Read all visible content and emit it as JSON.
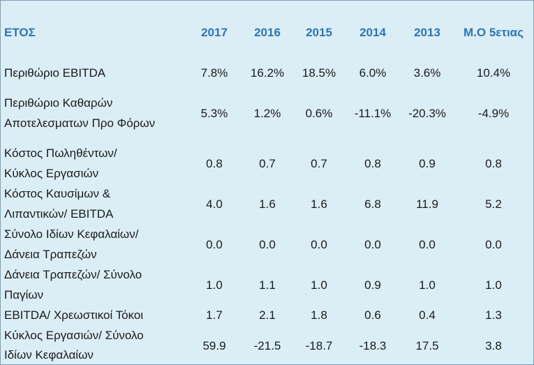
{
  "header": {
    "label": "ΕΤΟΣ",
    "years": [
      "2017",
      "2016",
      "2015",
      "2014",
      "2013",
      "Μ.Ο 5ετιας"
    ]
  },
  "rows": [
    {
      "label_lines": [
        "Περιθώριο EBITDA"
      ],
      "values": [
        "7.8%",
        "16.2%",
        "18.5%",
        "6.0%",
        "3.6%",
        "10.4%"
      ]
    },
    {
      "label_lines": [
        "Περιθώριο Καθαρών",
        "Αποτελεσματων Προ Φόρων"
      ],
      "values": [
        "5.3%",
        "1.2%",
        "0.6%",
        "-11.1%",
        "-20.3%",
        "-4.9%"
      ]
    },
    {
      "label_lines": [
        "Κόστος Πωληθέντων/",
        "Κύκλος Εργασιών"
      ],
      "values": [
        "0.8",
        "0.7",
        "0.7",
        "0.8",
        "0.9",
        "0.8"
      ]
    },
    {
      "label_lines": [
        "Κόστος Καυσίμων &",
        "Λιπαντικών/ EBITDA"
      ],
      "values": [
        "4.0",
        "1.6",
        "1.6",
        "6.8",
        "11.9",
        "5.2"
      ]
    },
    {
      "label_lines": [
        "Σύνολο Ιδίων Κεφαλαίων/",
        "Δάνεια Τραπεζών"
      ],
      "values": [
        "0.0",
        "0.0",
        "0.0",
        "0.0",
        "0.0",
        "0.0"
      ]
    },
    {
      "label_lines": [
        "Δάνεια Τραπεζών/ Σύνολο",
        "Παγίων"
      ],
      "values": [
        "1.0",
        "1.1",
        "1.0",
        "0.9",
        "1.0",
        "1.0"
      ]
    },
    {
      "label_lines": [
        "EBITDA/ Χρεωστικοί Τόκοι"
      ],
      "values": [
        "1.7",
        "2.1",
        "1.8",
        "0.6",
        "0.4",
        "1.3"
      ]
    },
    {
      "label_lines": [
        "Κύκλος Εργασιών/ Σύνολο",
        "Ιδίων Κεφαλαίων"
      ],
      "values": [
        "59.9",
        "-21.5",
        "-18.7",
        "-18.3",
        "17.5",
        "3.8"
      ]
    }
  ]
}
